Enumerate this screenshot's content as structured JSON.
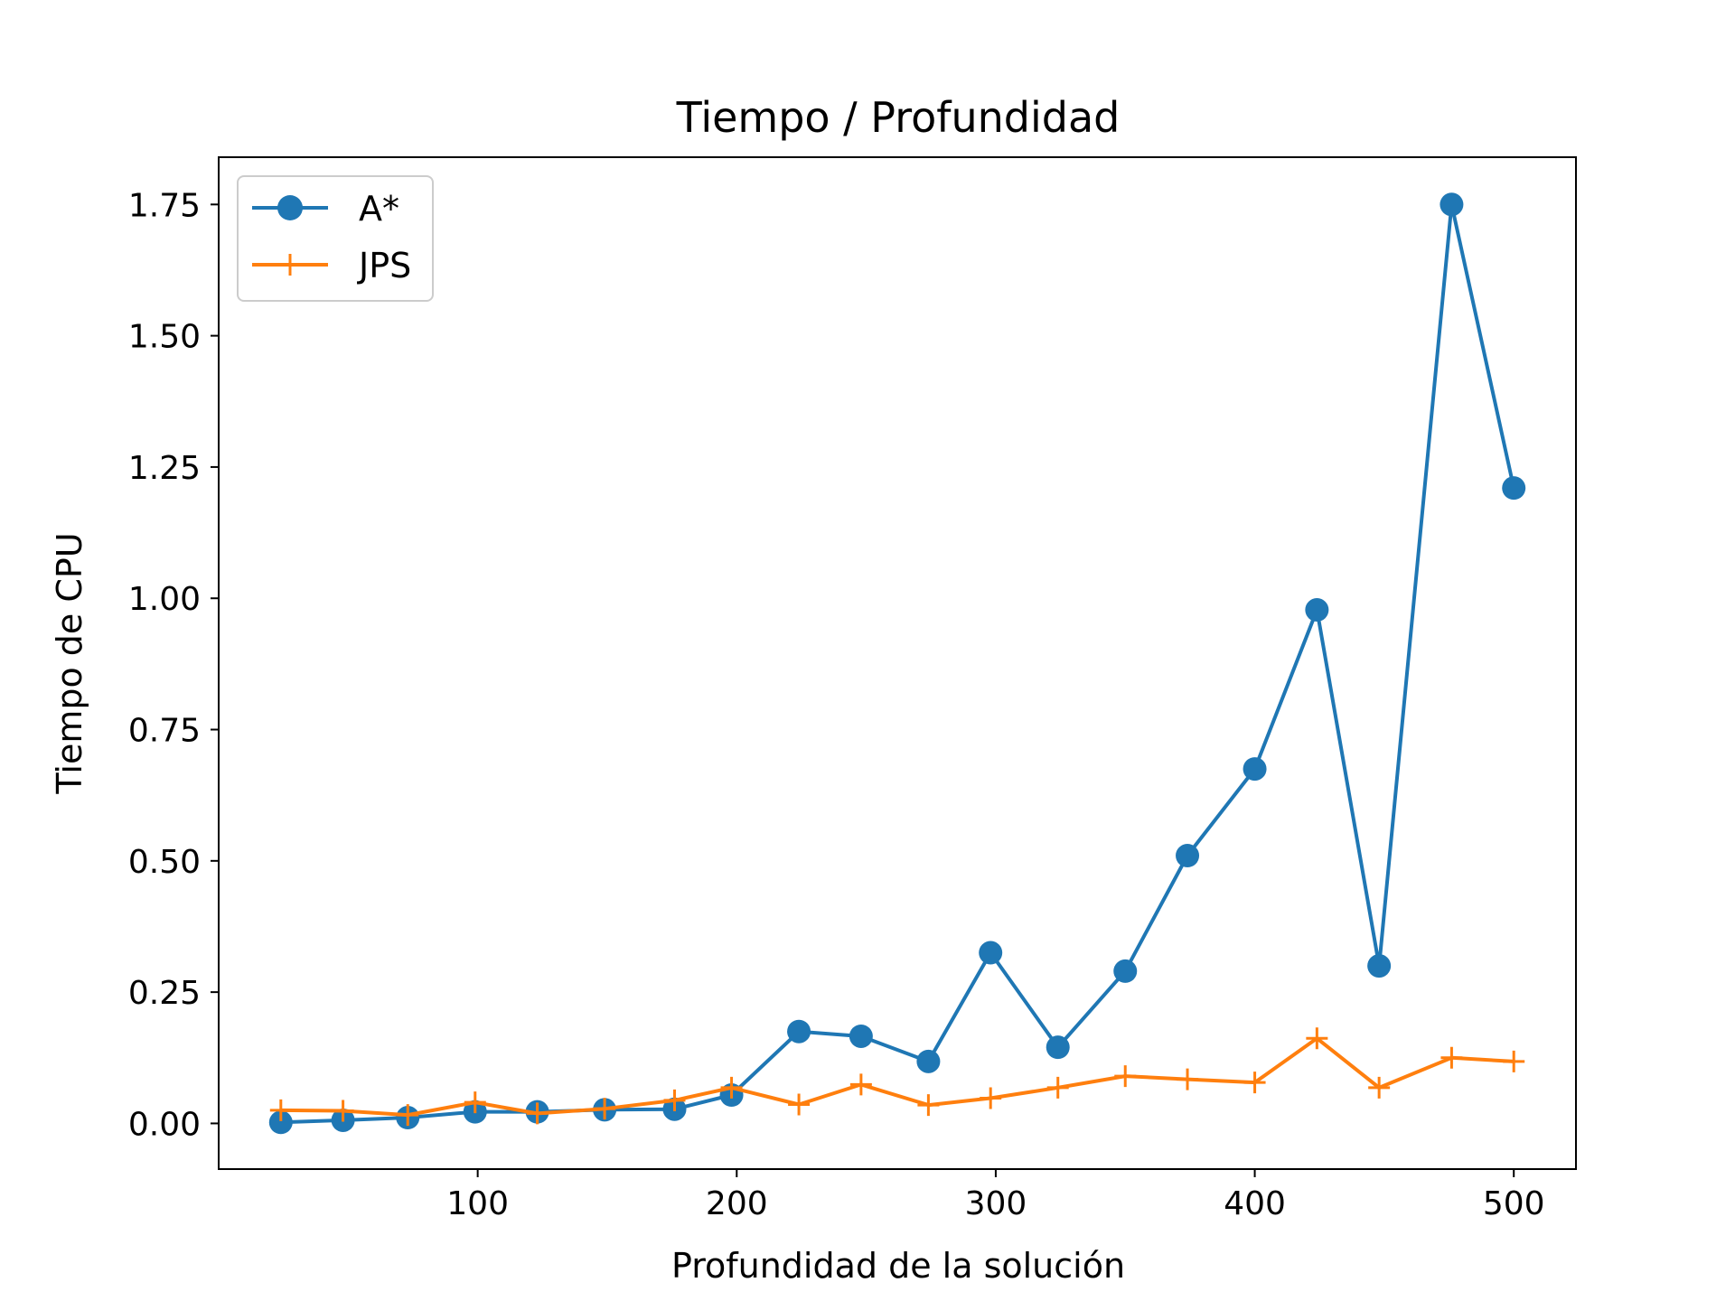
{
  "chart_data": {
    "type": "line",
    "title": "Tiempo / Profundidad",
    "xlabel": "Profundidad de la solución",
    "ylabel": "Tiempo de CPU",
    "xlim": [
      0,
      524
    ],
    "ylim": [
      -0.087,
      1.84
    ],
    "xticks": [
      100,
      200,
      300,
      400,
      500
    ],
    "xtick_labels": [
      "100",
      "200",
      "300",
      "400",
      "500"
    ],
    "yticks": [
      0.0,
      0.25,
      0.5,
      0.75,
      1.0,
      1.25,
      1.5,
      1.75
    ],
    "ytick_labels": [
      "0.00",
      "0.25",
      "0.50",
      "0.75",
      "1.00",
      "1.25",
      "1.50",
      "1.75"
    ],
    "grid": false,
    "legend_position": "top-left",
    "x": [
      24,
      48,
      73,
      99,
      123,
      149,
      176,
      198,
      224,
      248,
      274,
      298,
      324,
      350,
      374,
      400,
      424,
      448,
      476,
      500
    ],
    "series": [
      {
        "name": "A*",
        "color": "#1f77b4",
        "marker": "circle",
        "values": [
          0.002,
          0.006,
          0.011,
          0.022,
          0.022,
          0.026,
          0.027,
          0.054,
          0.175,
          0.166,
          0.118,
          0.325,
          0.145,
          0.29,
          0.51,
          0.675,
          0.978,
          0.3,
          1.75,
          1.21
        ]
      },
      {
        "name": "JPS",
        "color": "#ff7f0e",
        "marker": "plus",
        "values": [
          0.025,
          0.024,
          0.016,
          0.04,
          0.019,
          0.028,
          0.044,
          0.068,
          0.036,
          0.074,
          0.035,
          0.048,
          0.068,
          0.09,
          0.084,
          0.078,
          0.162,
          0.068,
          0.125,
          0.118
        ]
      }
    ]
  }
}
